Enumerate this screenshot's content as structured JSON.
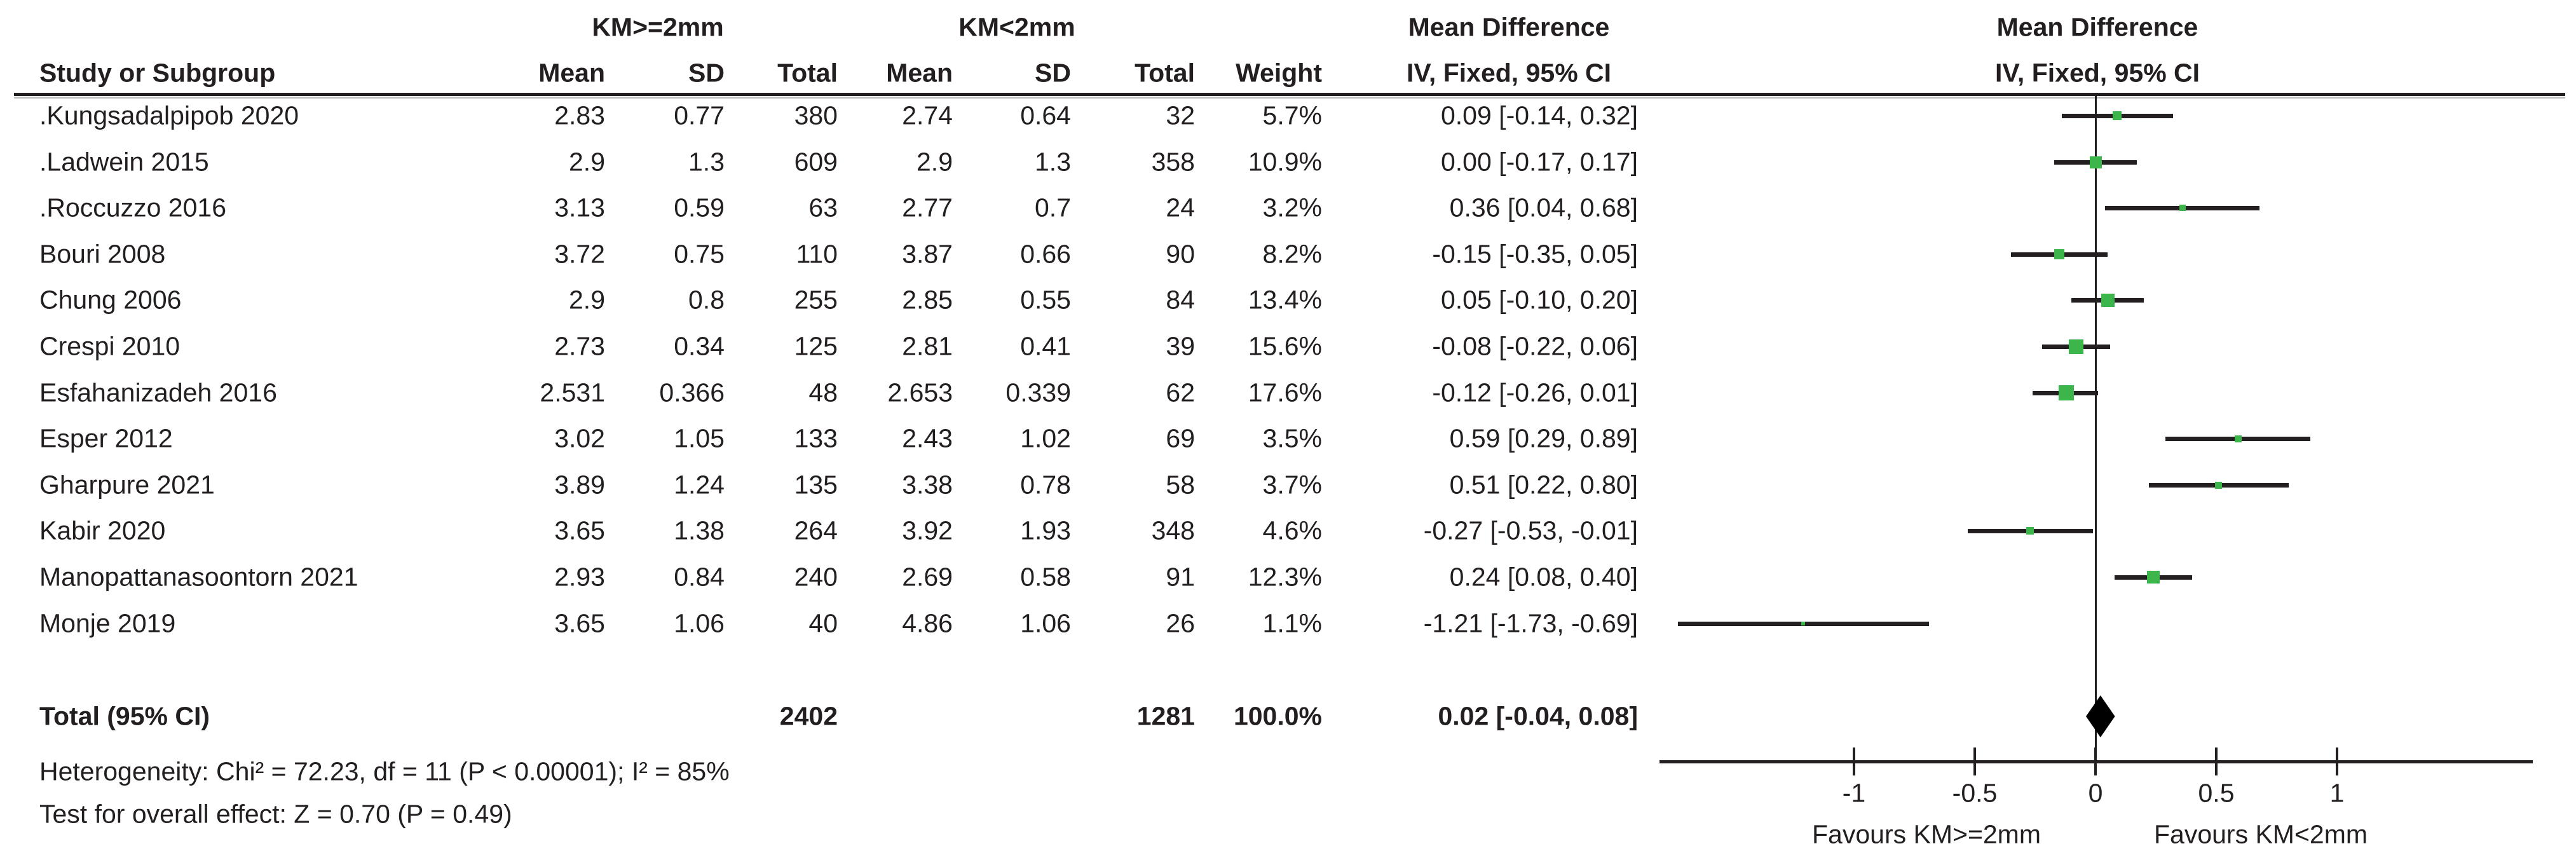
{
  "header": {
    "study_col": "Study or Subgroup",
    "group1_label": "KM>=2mm",
    "group2_label": "KM<2mm",
    "mean_label": "Mean",
    "sd_label": "SD",
    "total_label": "Total",
    "weight_label": "Weight",
    "md_col_title": "Mean Difference",
    "md_col_subtitle": "IV, Fixed, 95% CI",
    "plot_title": "Mean Difference",
    "plot_subtitle": "IV, Fixed, 95% CI"
  },
  "chart_data": {
    "type": "forest",
    "effect_measure": "Mean Difference",
    "model": "IV, Fixed, 95% CI",
    "marker_color": "#3CB54A",
    "line_color": "#231F20",
    "studies": [
      {
        "name": ".Kungsadalpipob 2020",
        "mean1": "2.83",
        "sd1": "0.77",
        "total1": "380",
        "mean2": "2.74",
        "sd2": "0.64",
        "total2": "32",
        "weight": "5.7%",
        "weight_value": 5.7,
        "ci_text": "0.09 [-0.14, 0.32]",
        "md": 0.09,
        "lo": -0.14,
        "hi": 0.32
      },
      {
        "name": ".Ladwein 2015",
        "mean1": "2.9",
        "sd1": "1.3",
        "total1": "609",
        "mean2": "2.9",
        "sd2": "1.3",
        "total2": "358",
        "weight": "10.9%",
        "weight_value": 10.9,
        "ci_text": "0.00 [-0.17, 0.17]",
        "md": 0.0,
        "lo": -0.17,
        "hi": 0.17
      },
      {
        "name": ".Roccuzzo 2016",
        "mean1": "3.13",
        "sd1": "0.59",
        "total1": "63",
        "mean2": "2.77",
        "sd2": "0.7",
        "total2": "24",
        "weight": "3.2%",
        "weight_value": 3.2,
        "ci_text": "0.36 [0.04, 0.68]",
        "md": 0.36,
        "lo": 0.04,
        "hi": 0.68
      },
      {
        "name": "Bouri 2008",
        "mean1": "3.72",
        "sd1": "0.75",
        "total1": "110",
        "mean2": "3.87",
        "sd2": "0.66",
        "total2": "90",
        "weight": "8.2%",
        "weight_value": 8.2,
        "ci_text": "-0.15 [-0.35, 0.05]",
        "md": -0.15,
        "lo": -0.35,
        "hi": 0.05
      },
      {
        "name": "Chung 2006",
        "mean1": "2.9",
        "sd1": "0.8",
        "total1": "255",
        "mean2": "2.85",
        "sd2": "0.55",
        "total2": "84",
        "weight": "13.4%",
        "weight_value": 13.4,
        "ci_text": "0.05 [-0.10, 0.20]",
        "md": 0.05,
        "lo": -0.1,
        "hi": 0.2
      },
      {
        "name": "Crespi 2010",
        "mean1": "2.73",
        "sd1": "0.34",
        "total1": "125",
        "mean2": "2.81",
        "sd2": "0.41",
        "total2": "39",
        "weight": "15.6%",
        "weight_value": 15.6,
        "ci_text": "-0.08 [-0.22, 0.06]",
        "md": -0.08,
        "lo": -0.22,
        "hi": 0.06
      },
      {
        "name": "Esfahanizadeh 2016",
        "mean1": "2.531",
        "sd1": "0.366",
        "total1": "48",
        "mean2": "2.653",
        "sd2": "0.339",
        "total2": "62",
        "weight": "17.6%",
        "weight_value": 17.6,
        "ci_text": "-0.12 [-0.26, 0.01]",
        "md": -0.12,
        "lo": -0.26,
        "hi": 0.01
      },
      {
        "name": "Esper 2012",
        "mean1": "3.02",
        "sd1": "1.05",
        "total1": "133",
        "mean2": "2.43",
        "sd2": "1.02",
        "total2": "69",
        "weight": "3.5%",
        "weight_value": 3.5,
        "ci_text": "0.59 [0.29, 0.89]",
        "md": 0.59,
        "lo": 0.29,
        "hi": 0.89
      },
      {
        "name": "Gharpure 2021",
        "mean1": "3.89",
        "sd1": "1.24",
        "total1": "135",
        "mean2": "3.38",
        "sd2": "0.78",
        "total2": "58",
        "weight": "3.7%",
        "weight_value": 3.7,
        "ci_text": "0.51 [0.22, 0.80]",
        "md": 0.51,
        "lo": 0.22,
        "hi": 0.8
      },
      {
        "name": "Kabir 2020",
        "mean1": "3.65",
        "sd1": "1.38",
        "total1": "264",
        "mean2": "3.92",
        "sd2": "1.93",
        "total2": "348",
        "weight": "4.6%",
        "weight_value": 4.6,
        "ci_text": "-0.27 [-0.53, -0.01]",
        "md": -0.27,
        "lo": -0.53,
        "hi": -0.01
      },
      {
        "name": "Manopattanasoontorn 2021",
        "mean1": "2.93",
        "sd1": "0.84",
        "total1": "240",
        "mean2": "2.69",
        "sd2": "0.58",
        "total2": "91",
        "weight": "12.3%",
        "weight_value": 12.3,
        "ci_text": "0.24 [0.08, 0.40]",
        "md": 0.24,
        "lo": 0.08,
        "hi": 0.4
      },
      {
        "name": "Monje 2019",
        "mean1": "3.65",
        "sd1": "1.06",
        "total1": "40",
        "mean2": "4.86",
        "sd2": "1.06",
        "total2": "26",
        "weight": "1.1%",
        "weight_value": 1.1,
        "ci_text": "-1.21 [-1.73, -0.69]",
        "md": -1.21,
        "lo": -1.73,
        "hi": -0.69
      }
    ],
    "total": {
      "label": "Total (95% CI)",
      "total1": "2402",
      "total2": "1281",
      "weight": "100.0%",
      "ci_text": "0.02 [-0.04, 0.08]",
      "md": 0.02,
      "lo": -0.04,
      "hi": 0.08
    },
    "heterogeneity": "Heterogeneity: Chi² = 72.23, df = 11 (P < 0.00001); I² = 85%",
    "overall_effect": "Test for overall effect: Z = 0.70 (P = 0.49)",
    "axis": {
      "xmin": -1.81,
      "xmax": 1.81,
      "ticks": [
        -1,
        -0.5,
        0,
        0.5,
        1
      ],
      "tick_labels": [
        "-1",
        "-0.5",
        "0",
        "0.5",
        "1"
      ],
      "favours_left": "Favours KM>=2mm",
      "favours_right": "Favours KM<2mm"
    }
  }
}
